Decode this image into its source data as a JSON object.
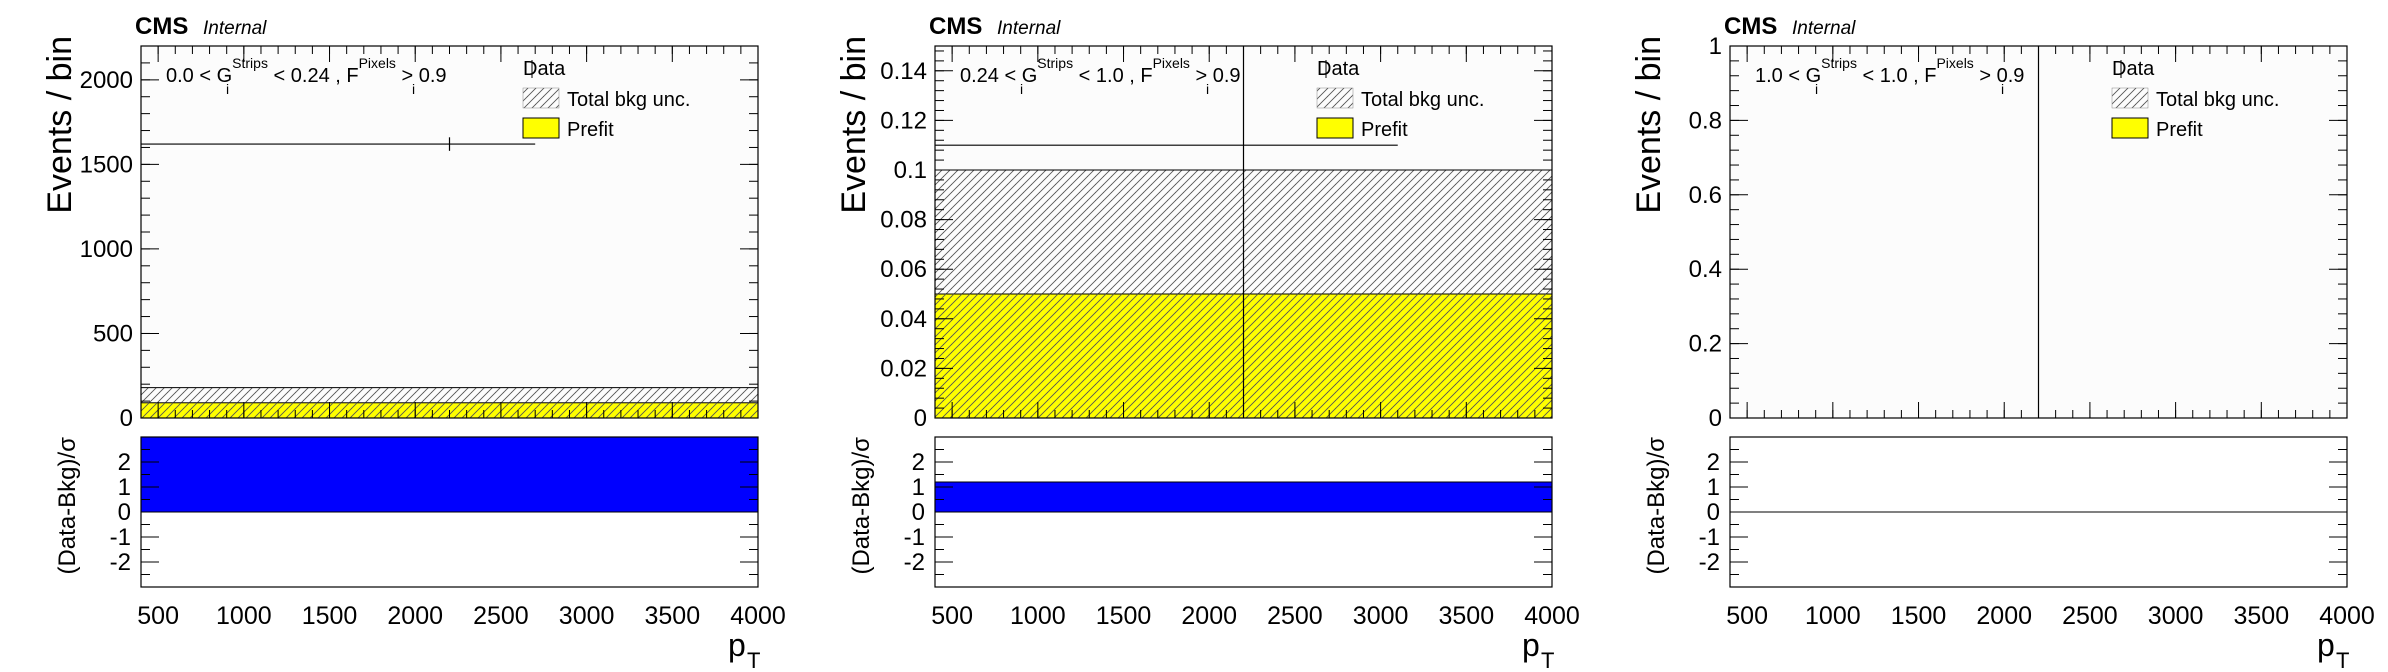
{
  "figure": {
    "experiment_label": "CMS",
    "status_label": "Internal"
  },
  "colors": {
    "prefit": "#ffff00",
    "ratio_fill": "#0000ff",
    "hatch": "#555555",
    "axis": "#000000",
    "upper_background": "#fcfcfc"
  },
  "legend": {
    "data_label": "Data",
    "unc_label": "Total bkg unc.",
    "prefit_label": "Prefit"
  },
  "chart_data": [
    {
      "type": "bar",
      "panel": "left",
      "title": "CMS Internal",
      "region": {
        "lo": "0.0",
        "hi": "0.24",
        "g_var": "G",
        "g_sub": "i",
        "g_sup": "Strips",
        "f_var": "F",
        "f_sub": "i",
        "f_sup": "Pixels",
        "f_cut": "0.9"
      },
      "xlabel": "p",
      "xlabel_sub": "T",
      "ylabel": "Events / bin",
      "ratio_ylabel": "(Data-Bkg)/σ",
      "xlim": [
        400,
        4000
      ],
      "xticks": [
        500,
        1000,
        1500,
        2000,
        2500,
        3000,
        3500,
        4000
      ],
      "ylim": [
        0,
        2200
      ],
      "yticks": [
        0,
        500,
        1000,
        1500,
        2000
      ],
      "ytick_labels": [
        "0",
        "500",
        "1000",
        "1500",
        "2000"
      ],
      "prefit": 90,
      "unc_band": [
        50,
        180
      ],
      "data": {
        "x": 2200,
        "y": 1620,
        "err": 40,
        "xlo": 400,
        "xhi": 2700
      },
      "ratio_ylim": [
        -3,
        3
      ],
      "ratio_yticks": [
        -2,
        -1,
        0,
        1,
        2
      ],
      "ratio_value": 3.0
    },
    {
      "type": "bar",
      "panel": "middle",
      "title": "CMS Internal",
      "region": {
        "lo": "0.24",
        "hi": "1.0",
        "g_var": "G",
        "g_sub": "i",
        "g_sup": "Strips",
        "f_var": "F",
        "f_sub": "i",
        "f_sup": "Pixels",
        "f_cut": "0.9"
      },
      "xlabel": "p",
      "xlabel_sub": "T",
      "ylabel": "Events / bin",
      "ratio_ylabel": "(Data-Bkg)/σ",
      "xlim": [
        400,
        4000
      ],
      "xticks": [
        500,
        1000,
        1500,
        2000,
        2500,
        3000,
        3500,
        4000
      ],
      "ylim": [
        0,
        0.15
      ],
      "yticks": [
        0,
        0.02,
        0.04,
        0.06,
        0.08,
        0.1,
        0.12,
        0.14
      ],
      "ytick_labels": [
        "0",
        "0.02",
        "0.04",
        "0.06",
        "0.08",
        "0.1",
        "0.12",
        "0.14"
      ],
      "prefit": 0.05,
      "unc_band": [
        0,
        0.1
      ],
      "data": {
        "x": 2200,
        "y": 0.11,
        "err": 1,
        "xlo": 400,
        "xhi": 3100
      },
      "ratio_ylim": [
        -3,
        3
      ],
      "ratio_yticks": [
        -2,
        -1,
        0,
        1,
        2
      ],
      "ratio_value": 1.2
    },
    {
      "type": "bar",
      "panel": "right",
      "title": "CMS Internal",
      "region": {
        "lo": "1.0",
        "hi": "1.0",
        "g_var": "G",
        "g_sub": "i",
        "g_sup": "Strips",
        "f_var": "F",
        "f_sub": "i",
        "f_sup": "Pixels",
        "f_cut": "0.9"
      },
      "xlabel": "p",
      "xlabel_sub": "T",
      "ylabel": "Events / bin",
      "ratio_ylabel": "(Data-Bkg)/σ",
      "xlim": [
        400,
        4000
      ],
      "xticks": [
        500,
        1000,
        1500,
        2000,
        2500,
        3000,
        3500,
        4000
      ],
      "ylim": [
        0,
        1
      ],
      "yticks": [
        0,
        0.2,
        0.4,
        0.6,
        0.8,
        1
      ],
      "ytick_labels": [
        "0",
        "0.2",
        "0.4",
        "0.6",
        "0.8",
        "1"
      ],
      "prefit": 0,
      "unc_band": [
        0,
        0
      ],
      "data": {
        "x": 2200,
        "y": 0,
        "err": 1,
        "xlo": 2200,
        "xhi": 2200
      },
      "ratio_ylim": [
        -3,
        3
      ],
      "ratio_yticks": [
        -2,
        -1,
        0,
        1,
        2
      ],
      "ratio_value": 0
    }
  ]
}
